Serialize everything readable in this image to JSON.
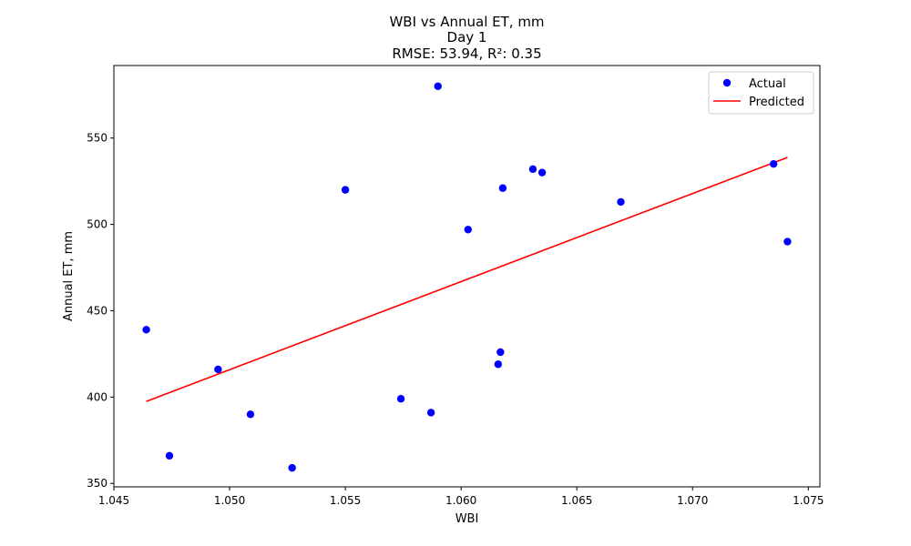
{
  "chart_data": {
    "type": "scatter",
    "title_lines": [
      "WBI vs Annual ET, mm",
      "Day 1",
      "RMSE: 53.94, R²: 0.35"
    ],
    "xlabel": "WBI",
    "ylabel": "Annual ET, mm",
    "xlim": [
      1.045,
      1.0755
    ],
    "ylim": [
      348,
      592
    ],
    "xticks": [
      1.045,
      1.05,
      1.055,
      1.06,
      1.065,
      1.07,
      1.075
    ],
    "xtick_labels": [
      "1.045",
      "1.050",
      "1.055",
      "1.060",
      "1.065",
      "1.070",
      "1.075"
    ],
    "yticks": [
      350,
      400,
      450,
      500,
      550
    ],
    "ytick_labels": [
      "350",
      "400",
      "450",
      "500",
      "550"
    ],
    "grid": false,
    "legend_position": "top-right",
    "series": [
      {
        "name": "Actual",
        "kind": "scatter",
        "color": "#0000ff",
        "points": [
          {
            "x": 1.0464,
            "y": 439
          },
          {
            "x": 1.0474,
            "y": 366
          },
          {
            "x": 1.0495,
            "y": 416
          },
          {
            "x": 1.0509,
            "y": 390
          },
          {
            "x": 1.0527,
            "y": 359
          },
          {
            "x": 1.055,
            "y": 520
          },
          {
            "x": 1.0574,
            "y": 399
          },
          {
            "x": 1.0587,
            "y": 391
          },
          {
            "x": 1.059,
            "y": 580
          },
          {
            "x": 1.0603,
            "y": 497
          },
          {
            "x": 1.0616,
            "y": 419
          },
          {
            "x": 1.0617,
            "y": 426
          },
          {
            "x": 1.0618,
            "y": 521
          },
          {
            "x": 1.0631,
            "y": 532
          },
          {
            "x": 1.0635,
            "y": 530
          },
          {
            "x": 1.0669,
            "y": 513
          },
          {
            "x": 1.0735,
            "y": 535
          },
          {
            "x": 1.0741,
            "y": 490
          }
        ]
      },
      {
        "name": "Predicted",
        "kind": "line",
        "color": "#ff0000",
        "points": [
          {
            "x": 1.0464,
            "y": 397.5
          },
          {
            "x": 1.0741,
            "y": 538.8
          }
        ]
      }
    ]
  }
}
